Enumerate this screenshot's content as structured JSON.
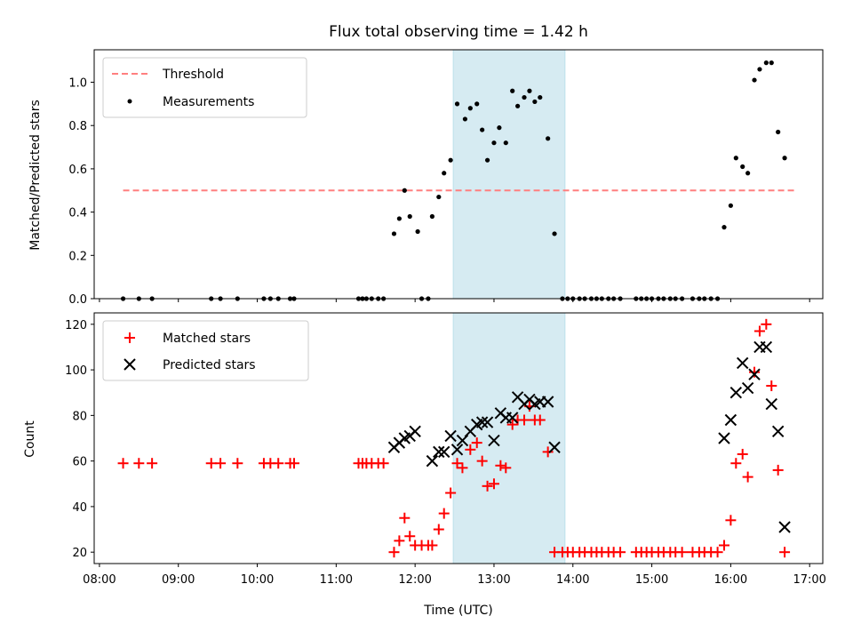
{
  "title": "Flux total observing time = 1.42 h",
  "colors": {
    "threshold": "#ff7f7f",
    "measurements": "#000000",
    "matched": "#ff0000",
    "predicted": "#000000",
    "span": "#add8e6"
  },
  "chart_data": [
    {
      "type": "scatter",
      "title": "Flux total observing time = 1.42 h",
      "xlabel": "",
      "ylabel": "Matched/Predicted stars",
      "xlim": [
        "07:56",
        "17:10"
      ],
      "ylim": [
        0,
        1.15
      ],
      "yticks": [
        "0.0",
        "0.2",
        "0.4",
        "0.6",
        "0.8",
        "1.0"
      ],
      "shaded_span": [
        "12:29",
        "13:54"
      ],
      "legend": {
        "placement": "top-left",
        "entries": [
          "Threshold",
          "Measurements"
        ]
      },
      "series": [
        {
          "name": "Threshold",
          "kind": "dashed-line",
          "x": [
            "08:18",
            "16:50"
          ],
          "y": [
            0.5,
            0.5
          ]
        },
        {
          "name": "Measurements",
          "kind": "dots",
          "points": [
            [
              "08:18",
              0
            ],
            [
              "08:30",
              0
            ],
            [
              "08:40",
              0
            ],
            [
              "09:25",
              0
            ],
            [
              "09:32",
              0
            ],
            [
              "09:45",
              0
            ],
            [
              "10:05",
              0
            ],
            [
              "10:10",
              0
            ],
            [
              "10:16",
              0
            ],
            [
              "10:25",
              0
            ],
            [
              "10:28",
              0
            ],
            [
              "11:17",
              0
            ],
            [
              "11:20",
              0
            ],
            [
              "11:23",
              0
            ],
            [
              "11:27",
              0
            ],
            [
              "11:32",
              0
            ],
            [
              "11:36",
              0
            ],
            [
              "11:44",
              0.3
            ],
            [
              "11:48",
              0.37
            ],
            [
              "11:52",
              0.5
            ],
            [
              "11:56",
              0.38
            ],
            [
              "12:02",
              0.31
            ],
            [
              "12:05",
              0
            ],
            [
              "12:10",
              0
            ],
            [
              "12:13",
              0.38
            ],
            [
              "12:18",
              0.47
            ],
            [
              "12:22",
              0.58
            ],
            [
              "12:27",
              0.64
            ],
            [
              "12:32",
              0.9
            ],
            [
              "12:38",
              0.83
            ],
            [
              "12:42",
              0.88
            ],
            [
              "12:47",
              0.9
            ],
            [
              "12:51",
              0.78
            ],
            [
              "12:55",
              0.64
            ],
            [
              "13:00",
              0.72
            ],
            [
              "13:04",
              0.79
            ],
            [
              "13:09",
              0.72
            ],
            [
              "13:14",
              0.96
            ],
            [
              "13:18",
              0.89
            ],
            [
              "13:23",
              0.93
            ],
            [
              "13:27",
              0.96
            ],
            [
              "13:31",
              0.91
            ],
            [
              "13:35",
              0.93
            ],
            [
              "13:41",
              0.74
            ],
            [
              "13:46",
              0.3
            ],
            [
              "13:52",
              0
            ],
            [
              "13:56",
              0
            ],
            [
              "14:00",
              0
            ],
            [
              "14:05",
              0
            ],
            [
              "14:09",
              0
            ],
            [
              "14:14",
              0
            ],
            [
              "14:18",
              0
            ],
            [
              "14:22",
              0
            ],
            [
              "14:27",
              0
            ],
            [
              "14:31",
              0
            ],
            [
              "14:36",
              0
            ],
            [
              "14:48",
              0
            ],
            [
              "14:52",
              0
            ],
            [
              "14:56",
              0
            ],
            [
              "15:00",
              0
            ],
            [
              "15:05",
              0
            ],
            [
              "15:09",
              0
            ],
            [
              "15:14",
              0
            ],
            [
              "15:18",
              0
            ],
            [
              "15:23",
              0
            ],
            [
              "15:31",
              0
            ],
            [
              "15:36",
              0
            ],
            [
              "15:40",
              0
            ],
            [
              "15:45",
              0
            ],
            [
              "15:50",
              0
            ],
            [
              "15:55",
              0.33
            ],
            [
              "16:00",
              0.43
            ],
            [
              "16:04",
              0.65
            ],
            [
              "16:09",
              0.61
            ],
            [
              "16:13",
              0.58
            ],
            [
              "16:18",
              1.01
            ],
            [
              "16:22",
              1.06
            ],
            [
              "16:27",
              1.09
            ],
            [
              "16:31",
              1.09
            ],
            [
              "16:36",
              0.77
            ],
            [
              "16:41",
              0.65
            ]
          ]
        }
      ]
    },
    {
      "type": "scatter",
      "title": "",
      "xlabel": "Time (UTC)",
      "ylabel": "Count",
      "xlim": [
        "07:56",
        "17:10"
      ],
      "ylim": [
        15,
        125
      ],
      "xticks": [
        "08:00",
        "09:00",
        "10:00",
        "11:00",
        "12:00",
        "13:00",
        "14:00",
        "15:00",
        "16:00",
        "17:00"
      ],
      "yticks": [
        "20",
        "40",
        "60",
        "80",
        "100",
        "120"
      ],
      "shaded_span": [
        "12:29",
        "13:54"
      ],
      "legend": {
        "placement": "top-left",
        "entries": [
          "Matched stars",
          "Predicted stars"
        ]
      },
      "series": [
        {
          "name": "Matched stars",
          "marker": "plus",
          "points": [
            [
              "08:18",
              59
            ],
            [
              "08:30",
              59
            ],
            [
              "08:40",
              59
            ],
            [
              "09:25",
              59
            ],
            [
              "09:32",
              59
            ],
            [
              "09:45",
              59
            ],
            [
              "10:05",
              59
            ],
            [
              "10:10",
              59
            ],
            [
              "10:16",
              59
            ],
            [
              "10:25",
              59
            ],
            [
              "10:28",
              59
            ],
            [
              "11:17",
              59
            ],
            [
              "11:20",
              59
            ],
            [
              "11:23",
              59
            ],
            [
              "11:27",
              59
            ],
            [
              "11:32",
              59
            ],
            [
              "11:36",
              59
            ],
            [
              "11:44",
              20
            ],
            [
              "11:48",
              25
            ],
            [
              "11:52",
              35
            ],
            [
              "11:56",
              27
            ],
            [
              "12:00",
              23
            ],
            [
              "12:05",
              23
            ],
            [
              "12:10",
              23
            ],
            [
              "12:13",
              23
            ],
            [
              "12:18",
              30
            ],
            [
              "12:22",
              37
            ],
            [
              "12:27",
              46
            ],
            [
              "12:32",
              59
            ],
            [
              "12:36",
              57
            ],
            [
              "12:42",
              65
            ],
            [
              "12:47",
              68
            ],
            [
              "12:51",
              60
            ],
            [
              "12:55",
              49
            ],
            [
              "13:00",
              50
            ],
            [
              "13:05",
              58
            ],
            [
              "13:09",
              57
            ],
            [
              "13:14",
              76
            ],
            [
              "13:18",
              78
            ],
            [
              "13:23",
              78
            ],
            [
              "13:27",
              84
            ],
            [
              "13:31",
              78
            ],
            [
              "13:35",
              78
            ],
            [
              "13:41",
              64
            ],
            [
              "13:46",
              20
            ],
            [
              "13:52",
              20
            ],
            [
              "13:56",
              20
            ],
            [
              "14:00",
              20
            ],
            [
              "14:05",
              20
            ],
            [
              "14:09",
              20
            ],
            [
              "14:14",
              20
            ],
            [
              "14:18",
              20
            ],
            [
              "14:22",
              20
            ],
            [
              "14:27",
              20
            ],
            [
              "14:31",
              20
            ],
            [
              "14:36",
              20
            ],
            [
              "14:48",
              20
            ],
            [
              "14:52",
              20
            ],
            [
              "14:56",
              20
            ],
            [
              "15:00",
              20
            ],
            [
              "15:05",
              20
            ],
            [
              "15:09",
              20
            ],
            [
              "15:14",
              20
            ],
            [
              "15:18",
              20
            ],
            [
              "15:23",
              20
            ],
            [
              "15:31",
              20
            ],
            [
              "15:36",
              20
            ],
            [
              "15:40",
              20
            ],
            [
              "15:45",
              20
            ],
            [
              "15:50",
              20
            ],
            [
              "15:55",
              23
            ],
            [
              "16:00",
              34
            ],
            [
              "16:04",
              59
            ],
            [
              "16:09",
              63
            ],
            [
              "16:13",
              53
            ],
            [
              "16:18",
              99
            ],
            [
              "16:22",
              117
            ],
            [
              "16:27",
              120
            ],
            [
              "16:31",
              93
            ],
            [
              "16:36",
              56
            ],
            [
              "16:41",
              20
            ]
          ]
        },
        {
          "name": "Predicted stars",
          "marker": "x",
          "points": [
            [
              "11:44",
              66
            ],
            [
              "11:48",
              68
            ],
            [
              "11:52",
              70
            ],
            [
              "11:56",
              71
            ],
            [
              "12:00",
              73
            ],
            [
              "12:13",
              60
            ],
            [
              "12:18",
              64
            ],
            [
              "12:22",
              64
            ],
            [
              "12:27",
              71
            ],
            [
              "12:32",
              65
            ],
            [
              "12:36",
              69
            ],
            [
              "12:42",
              73
            ],
            [
              "12:47",
              76
            ],
            [
              "12:51",
              77
            ],
            [
              "12:55",
              77
            ],
            [
              "13:00",
              69
            ],
            [
              "13:05",
              81
            ],
            [
              "13:09",
              79
            ],
            [
              "13:14",
              79
            ],
            [
              "13:18",
              88
            ],
            [
              "13:23",
              85
            ],
            [
              "13:27",
              87
            ],
            [
              "13:31",
              85
            ],
            [
              "13:35",
              86
            ],
            [
              "13:41",
              86
            ],
            [
              "13:46",
              66
            ],
            [
              "15:55",
              70
            ],
            [
              "16:00",
              78
            ],
            [
              "16:04",
              90
            ],
            [
              "16:09",
              103
            ],
            [
              "16:13",
              92
            ],
            [
              "16:18",
              98
            ],
            [
              "16:22",
              110
            ],
            [
              "16:27",
              110
            ],
            [
              "16:31",
              85
            ],
            [
              "16:36",
              73
            ],
            [
              "16:41",
              31
            ]
          ]
        }
      ]
    }
  ]
}
